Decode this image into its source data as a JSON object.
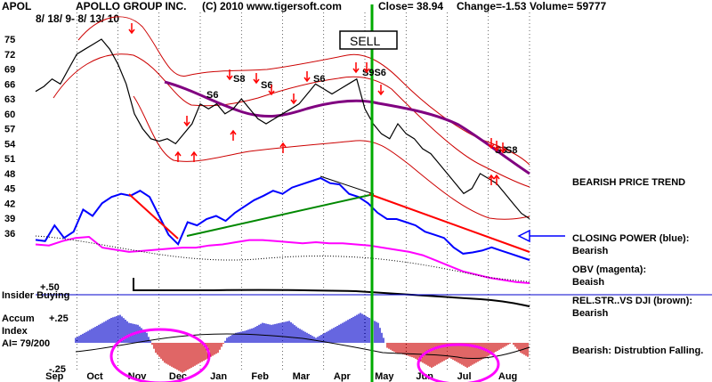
{
  "header": {
    "ticker": "APOL",
    "company": "APOLLO GROUP INC.",
    "date_range": "8/ 18/ 9- 8/ 13/ 10",
    "copyright": "(C) 2010 www.tigersoft.com",
    "close": "Close=  38.94",
    "change": "Change=-1.53",
    "volume": "Volume=  59777"
  },
  "sell_label": "SELL",
  "annotations": {
    "bearish_trend": "BEARISH PRICE TREND",
    "closing_power_1": "CLOSING POWER (blue):",
    "closing_power_2": "Bearish",
    "obv_1": "OBV (magenta):",
    "obv_2": "Beaish",
    "relstr_1": "REL.STR..VS DJI (brown):",
    "relstr_2": "Bearish",
    "accum_note": "Bearish:  Distrubtion Falling."
  },
  "lower_labels": {
    "plus50": "+.50",
    "insider": "Insider Buying",
    "accum": "Accum",
    "index": "Index",
    "ai": "AI= 79/200",
    "plus25": "+.25",
    "minus25": "-.25"
  },
  "colors": {
    "price": "#000000",
    "bands": "#cc0000",
    "closing_power": "#0000ff",
    "obv": "#ff00ff",
    "ma": "#800080",
    "sell_line": "#00aa00",
    "support": "#008800",
    "resistance": "#ff0000",
    "accum_pos": "#0000cc",
    "accum_neg": "#cc0000",
    "ellipse": "#ff00ff",
    "insider_line": "#0000cc"
  },
  "chart_data": {
    "type": "line",
    "title": "APOLLO GROUP INC.",
    "ylim": [
      36,
      75
    ],
    "y_ticks": [
      75,
      72,
      69,
      66,
      63,
      60,
      57,
      54,
      51,
      48,
      45,
      42,
      39,
      36
    ],
    "x_ticks": [
      "Sep",
      "Oct",
      "Nov",
      "Dec",
      "Jan",
      "Feb",
      "Mar",
      "Apr",
      "May",
      "Jun",
      "Jul",
      "Aug"
    ],
    "series": [
      {
        "type": "price",
        "values": [
          64.5,
          65.5,
          67,
          66,
          69,
          72,
          73,
          74,
          75,
          73,
          70,
          66,
          60,
          57,
          55,
          54.5,
          55,
          54,
          56,
          58,
          62,
          61,
          62,
          60,
          61,
          63,
          61,
          59,
          58,
          59,
          60,
          61,
          62,
          64,
          66,
          65,
          64,
          65,
          66,
          67,
          61,
          58,
          56,
          55,
          58,
          56,
          55,
          53,
          52,
          50,
          48,
          46,
          44,
          45,
          48,
          47,
          46,
          44,
          42,
          40,
          38.94
        ]
      },
      {
        "name": "Closing Power",
        "values": [
          37.2,
          37,
          39.5,
          37.5,
          38.5,
          42,
          41,
          43,
          44,
          44.5,
          44.2,
          45,
          44,
          41,
          38,
          36.5,
          40,
          39.5,
          40.5,
          41,
          40.2,
          41.5,
          42.5,
          43.5,
          44.2,
          45,
          44.5,
          45.5,
          46,
          46.5,
          47,
          46.2,
          46,
          44.5,
          44,
          43,
          41.5,
          40.5,
          40.5,
          40,
          39.5,
          38.5,
          38,
          37.5,
          36,
          35,
          35.2,
          35.5,
          36,
          35.5,
          35,
          34.5,
          34
        ]
      },
      {
        "name": "OBV",
        "values": [
          -0.5,
          -0.6,
          -0.2,
          0.1,
          0.2,
          -0.8,
          -1,
          -1.2,
          -1.1,
          -1,
          -0.9,
          -0.8,
          -0.8,
          -0.6,
          -0.5,
          -0.3,
          -0.1,
          -0.1,
          -0.2,
          -0.3,
          -0.4,
          -0.3,
          -0.4,
          -0.4,
          -0.5,
          -0.6,
          -0.8,
          -1,
          -1.2,
          -1.5,
          -2,
          -2.5,
          -3,
          -3.3,
          -3.6,
          -3.8,
          -4,
          -4.1
        ]
      },
      {
        "name": "Accum Index",
        "values": [
          0.05,
          0.1,
          0.15,
          0.2,
          0.25,
          0.28,
          0.2,
          0.18,
          0.1,
          -0.1,
          -0.2,
          -0.25,
          -0.3,
          -0.25,
          -0.2,
          -0.15,
          -0.1,
          0.05,
          0.1,
          0.12,
          0.15,
          0.2,
          0.18,
          0.2,
          0.22,
          0.15,
          0.1,
          0.05,
          0.1,
          0.15,
          0.2,
          0.25,
          0.3,
          0.25,
          0.2,
          -0.05,
          -0.1,
          -0.12,
          -0.15,
          -0.2,
          -0.25,
          -0.2,
          -0.15,
          -0.2,
          -0.25,
          -0.2,
          -0.15,
          -0.1,
          -0.05,
          0,
          -0.1,
          -0.15
        ]
      }
    ],
    "signals": [
      "S6",
      "S8",
      "S6",
      "S6",
      "S9S6",
      "S3",
      "S8",
      "SELL"
    ]
  }
}
